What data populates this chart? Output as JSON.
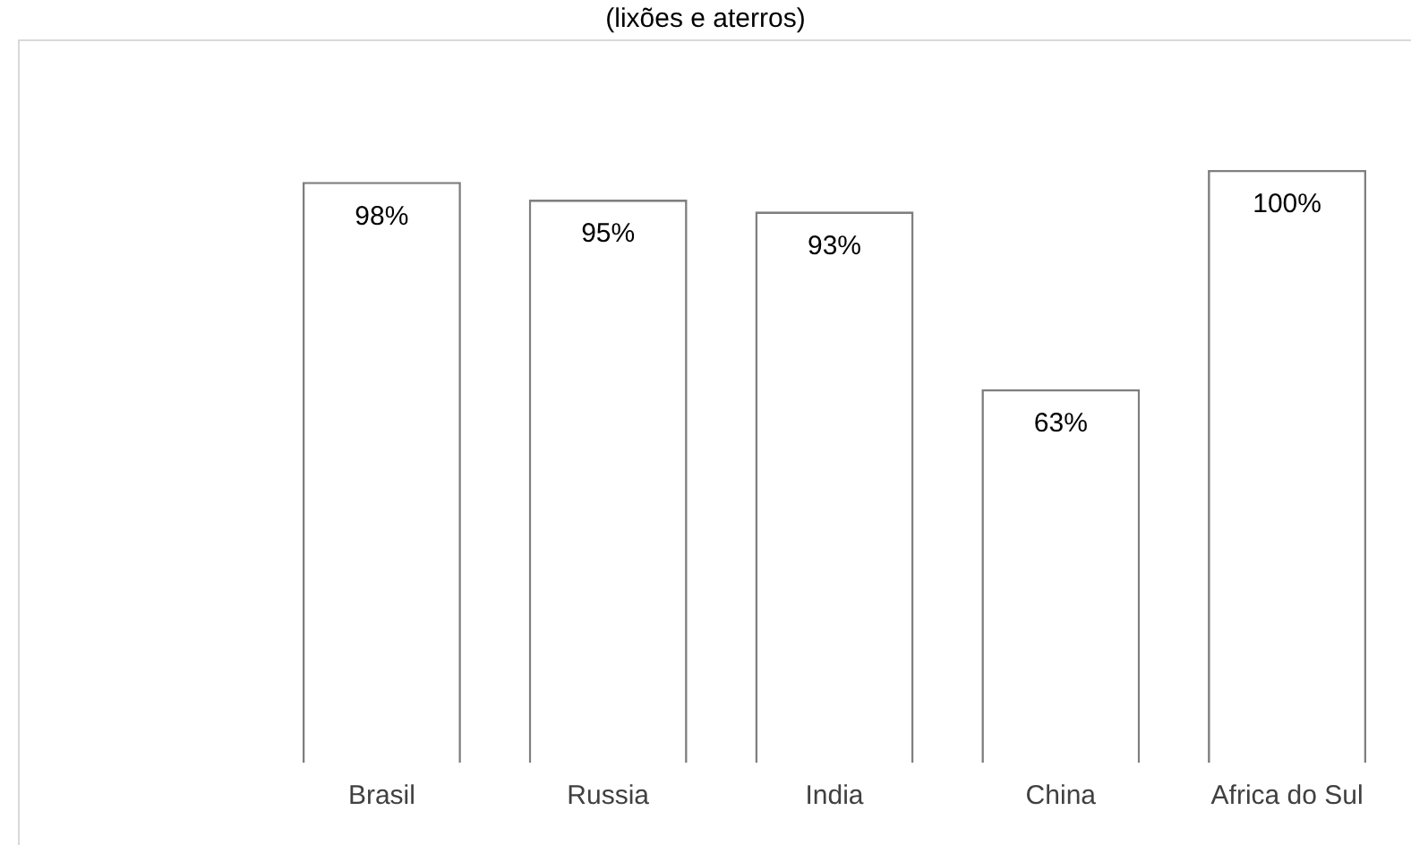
{
  "chart_data": {
    "type": "bar",
    "title": "(lixões e aterros)",
    "categories": [
      "Brasil",
      "Russia",
      "India",
      "China",
      "Africa do Sul"
    ],
    "values": [
      98,
      95,
      93,
      63,
      100
    ],
    "value_labels": [
      "98%",
      "95%",
      "93%",
      "63%",
      "100%"
    ],
    "color": "#ffffff",
    "grid": false,
    "legend": false,
    "tick_labels": "x"
  }
}
